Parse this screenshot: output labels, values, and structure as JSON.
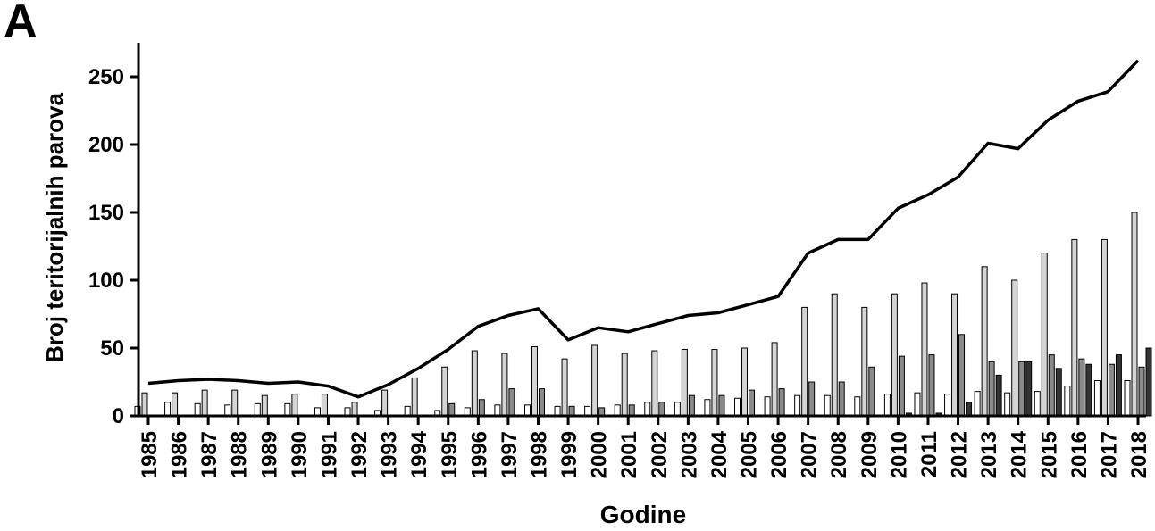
{
  "panel_label": "A",
  "chart_data": {
    "type": "bar",
    "xlabel": "Godine",
    "ylabel": "Broj teritorijalnih parova",
    "ylim": [
      0,
      275
    ],
    "yticks": [
      0,
      50,
      100,
      150,
      200,
      250
    ],
    "categories": [
      "1985",
      "1986",
      "1987",
      "1988",
      "1989",
      "1990",
      "1991",
      "1992",
      "1993",
      "1994",
      "1995",
      "1996",
      "1997",
      "1998",
      "1999",
      "2000",
      "2001",
      "2002",
      "2003",
      "2004",
      "2005",
      "2006",
      "2007",
      "2008",
      "2009",
      "2010",
      "2011",
      "2012",
      "2013",
      "2014",
      "2015",
      "2016",
      "2017",
      "2018"
    ],
    "series": [
      {
        "type": "bar",
        "color": "#ffffff",
        "values": [
          7,
          10,
          9,
          8,
          9,
          9,
          6,
          6,
          4,
          7,
          4,
          6,
          8,
          8,
          7,
          7,
          8,
          10,
          10,
          12,
          13,
          14,
          15,
          15,
          14,
          16,
          17,
          16,
          18,
          17,
          18,
          22,
          26,
          26
        ]
      },
      {
        "type": "bar",
        "color": "#d4d4d4",
        "values": [
          17,
          17,
          19,
          19,
          15,
          16,
          16,
          10,
          19,
          28,
          36,
          48,
          46,
          51,
          42,
          52,
          46,
          48,
          49,
          49,
          50,
          54,
          80,
          90,
          80,
          90,
          98,
          90,
          110,
          100,
          120,
          130,
          130,
          150
        ]
      },
      {
        "type": "bar",
        "color": "#8a8a8a",
        "values": [
          0,
          0,
          0,
          0,
          0,
          0,
          0,
          0,
          0,
          0,
          9,
          12,
          20,
          20,
          7,
          6,
          8,
          10,
          15,
          15,
          19,
          20,
          25,
          25,
          36,
          44,
          45,
          60,
          40,
          40,
          45,
          42,
          38,
          36
        ]
      },
      {
        "type": "bar",
        "color": "#333333",
        "values": [
          0,
          0,
          0,
          0,
          0,
          0,
          0,
          0,
          0,
          0,
          0,
          0,
          0,
          0,
          0,
          0,
          0,
          0,
          0,
          0,
          0,
          0,
          0,
          0,
          0,
          2,
          2,
          10,
          30,
          40,
          35,
          38,
          45,
          50
        ]
      },
      {
        "type": "line",
        "color": "#000000",
        "values": [
          24,
          26,
          27,
          26,
          24,
          25,
          22,
          14,
          23,
          35,
          49,
          66,
          74,
          79,
          56,
          65,
          62,
          68,
          74,
          76,
          82,
          88,
          120,
          130,
          130,
          153,
          163,
          176,
          201,
          197,
          218,
          232,
          239,
          262
        ]
      }
    ]
  }
}
